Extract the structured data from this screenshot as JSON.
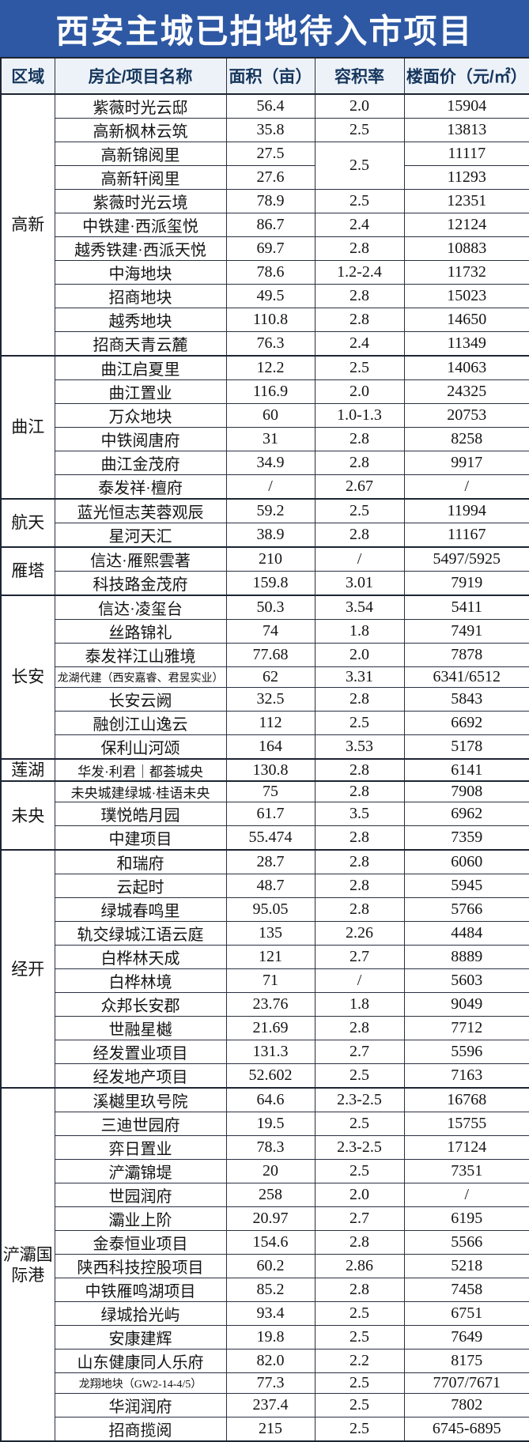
{
  "title": "西安主城已拍地待入市项目",
  "columns": [
    "区域",
    "房企/项目名称",
    "面积（亩）",
    "容积率",
    "楼面价（元/㎡）"
  ],
  "colors": {
    "title_bar_bg": "#2e58a3",
    "title_text": "#ffffff",
    "header_bg": "#edf2f9",
    "header_text": "#16365c",
    "body_text": "#141414",
    "border": "#1d2433"
  },
  "regions": [
    {
      "name": "高新",
      "rows": [
        {
          "project": "紫薇时光云邸",
          "area": "56.4",
          "far": "2.0",
          "price": "15904"
        },
        {
          "project": "高新枫林云筑",
          "area": "35.8",
          "far": "2.5",
          "price": "13813"
        },
        {
          "project": "高新锦阅里",
          "area": "27.5",
          "far": "2.5",
          "far_span": 2,
          "price": "11117"
        },
        {
          "project": "高新轩阅里",
          "area": "27.6",
          "price": "11293"
        },
        {
          "project": "紫薇时光云境",
          "area": "78.9",
          "far": "2.5",
          "price": "12351"
        },
        {
          "project": "中铁建·西派玺悦",
          "area": "86.7",
          "far": "2.4",
          "price": "12124"
        },
        {
          "project": "越秀铁建·西派天悦",
          "area": "69.7",
          "far": "2.8",
          "price": "10883"
        },
        {
          "project": "中海地块",
          "area": "78.6",
          "far": "1.2-2.4",
          "price": "11732"
        },
        {
          "project": "招商地块",
          "area": "49.5",
          "far": "2.8",
          "price": "15023"
        },
        {
          "project": "越秀地块",
          "area": "110.8",
          "far": "2.8",
          "price": "14650"
        },
        {
          "project": "招商天青云麓",
          "area": "76.3",
          "far": "2.4",
          "price": "11349"
        }
      ]
    },
    {
      "name": "曲江",
      "rows": [
        {
          "project": "曲江启夏里",
          "area": "12.2",
          "far": "2.5",
          "price": "14063"
        },
        {
          "project": "曲江置业",
          "area": "116.9",
          "far": "2.0",
          "price": "24325"
        },
        {
          "project": "万众地块",
          "area": "60",
          "far": "1.0-1.3",
          "price": "20753"
        },
        {
          "project": "中铁阅唐府",
          "area": "31",
          "far": "2.8",
          "price": "8258"
        },
        {
          "project": "曲江金茂府",
          "area": "34.9",
          "far": "2.8",
          "price": "9917"
        },
        {
          "project": "泰发祥·檀府",
          "area": "/",
          "far": "2.67",
          "price": "/"
        }
      ]
    },
    {
      "name": "航天",
      "rows": [
        {
          "project": "蓝光恒志芙蓉观辰",
          "area": "59.2",
          "far": "2.5",
          "price": "11994"
        },
        {
          "project": "星河天汇",
          "area": "38.9",
          "far": "2.8",
          "price": "11167"
        }
      ]
    },
    {
      "name": "雁塔",
      "rows": [
        {
          "project": "信达·雁熙雲著",
          "area": "210",
          "far": "/",
          "price": "5497/5925"
        },
        {
          "project": "科技路金茂府",
          "area": "159.8",
          "far": "3.01",
          "price": "7919"
        }
      ]
    },
    {
      "name": "长安",
      "rows": [
        {
          "project": "信达·凌玺台",
          "area": "50.3",
          "far": "3.54",
          "price": "5411"
        },
        {
          "project": "丝路锦礼",
          "area": "74",
          "far": "1.8",
          "price": "7491"
        },
        {
          "project": "泰发祥江山雅境",
          "area": "77.68",
          "far": "2.0",
          "price": "7878"
        },
        {
          "project": "龙湖代建（西安嘉睿、君昱实业）",
          "area": "62",
          "far": "3.31",
          "price": "6341/6512"
        },
        {
          "project": "长安云阙",
          "area": "32.5",
          "far": "2.8",
          "price": "5843"
        },
        {
          "project": "融创江山逸云",
          "area": "112",
          "far": "2.5",
          "price": "6692"
        },
        {
          "project": "保利山河颂",
          "area": "164",
          "far": "3.53",
          "price": "5178"
        }
      ]
    },
    {
      "name": "莲湖",
      "rows": [
        {
          "project": "华发·利君｜都荟城央",
          "area": "130.8",
          "far": "2.8",
          "price": "6141"
        }
      ]
    },
    {
      "name": "未央",
      "rows": [
        {
          "project": "未央城建绿城·桂语未央",
          "area": "75",
          "far": "2.8",
          "price": "7908"
        },
        {
          "project": "璞悦皓月园",
          "area": "61.7",
          "far": "3.5",
          "price": "6962"
        },
        {
          "project": "中建项目",
          "area": "55.474",
          "far": "2.8",
          "price": "7359"
        }
      ]
    },
    {
      "name": "经开",
      "rows": [
        {
          "project": "和瑞府",
          "area": "28.7",
          "far": "2.8",
          "price": "6060"
        },
        {
          "project": "云起时",
          "area": "48.7",
          "far": "2.8",
          "price": "5945"
        },
        {
          "project": "绿城春鸣里",
          "area": "95.05",
          "far": "2.8",
          "price": "5766"
        },
        {
          "project": "轨交绿城江语云庭",
          "area": "135",
          "far": "2.26",
          "price": "4484"
        },
        {
          "project": "白桦林天成",
          "area": "121",
          "far": "2.7",
          "price": "8889"
        },
        {
          "project": "白桦林境",
          "area": "71",
          "far": "/",
          "price": "5603"
        },
        {
          "project": "众邦长安郡",
          "area": "23.76",
          "far": "1.8",
          "price": "9049"
        },
        {
          "project": "世融星樾",
          "area": "21.69",
          "far": "2.8",
          "price": "7712"
        },
        {
          "project": "经发置业项目",
          "area": "131.3",
          "far": "2.7",
          "price": "5596"
        },
        {
          "project": "经发地产项目",
          "area": "52.602",
          "far": "2.5",
          "price": "7163"
        }
      ]
    },
    {
      "name": "浐灞国际港",
      "rows": [
        {
          "project": "溪樾里玖号院",
          "area": "64.6",
          "far": "2.3-2.5",
          "price": "16768"
        },
        {
          "project": "三迪世园府",
          "area": "19.5",
          "far": "2.5",
          "price": "15755"
        },
        {
          "project": "弈日置业",
          "area": "78.3",
          "far": "2.3-2.5",
          "price": "17124"
        },
        {
          "project": "浐灞锦堤",
          "area": "20",
          "far": "2.5",
          "price": "7351"
        },
        {
          "project": "世园润府",
          "area": "258",
          "far": "2.0",
          "price": "/"
        },
        {
          "project": "灞业上阶",
          "area": "20.97",
          "far": "2.7",
          "price": "6195"
        },
        {
          "project": "金泰恒业项目",
          "area": "154.6",
          "far": "2.8",
          "price": "5566"
        },
        {
          "project": "陕西科技控股项目",
          "area": "60.2",
          "far": "2.86",
          "price": "5218"
        },
        {
          "project": "中铁雁鸣湖项目",
          "area": "85.2",
          "far": "2.8",
          "price": "7458"
        },
        {
          "project": "绿城拾光屿",
          "area": "93.4",
          "far": "2.5",
          "price": "6751"
        },
        {
          "project": "安康建辉",
          "area": "19.8",
          "far": "2.5",
          "price": "7649"
        },
        {
          "project": "山东健康同人乐府",
          "area": "82.0",
          "far": "2.2",
          "price": "8175"
        },
        {
          "project": "龙翔地块（GW2-14-4/5）",
          "area": "77.3",
          "far": "2.5",
          "price": "7707/7671"
        },
        {
          "project": "华润润府",
          "area": "237.4",
          "far": "2.5",
          "price": "7802"
        },
        {
          "project": "招商揽阅",
          "area": "215",
          "far": "2.5",
          "price": "6745-6895"
        }
      ]
    }
  ]
}
